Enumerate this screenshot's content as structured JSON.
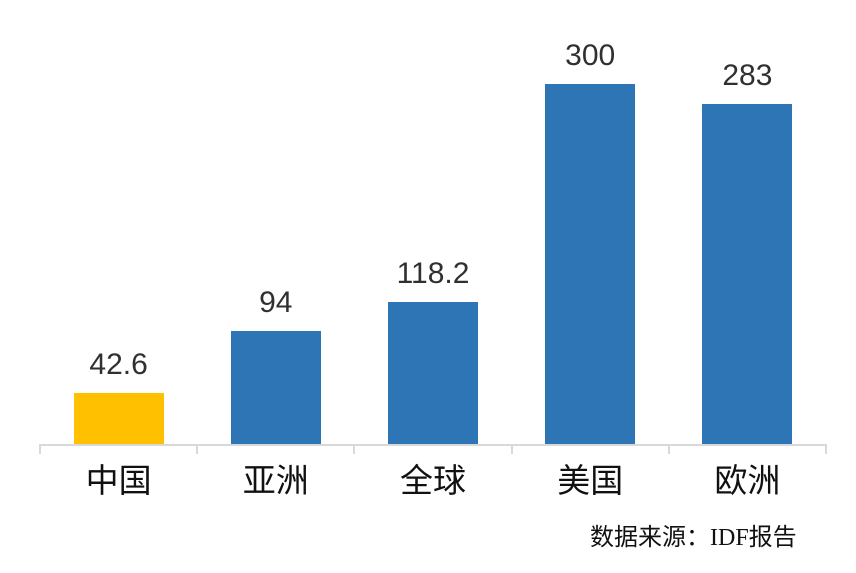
{
  "chart_data": {
    "type": "bar",
    "categories": [
      "中国",
      "亚洲",
      "全球",
      "美国",
      "欧洲"
    ],
    "values": [
      42.6,
      94,
      118.2,
      300,
      283
    ],
    "value_labels": [
      "42.6",
      "94",
      "118.2",
      "300",
      "283"
    ],
    "series": [
      {
        "name": "",
        "values": [
          42.6,
          94,
          118.2,
          300,
          283
        ]
      }
    ],
    "bar_colors": [
      "#FFC000",
      "#2E75B6",
      "#2E75B6",
      "#2E75B6",
      "#2E75B6"
    ],
    "title": "",
    "subtitle": "",
    "xlabel": "",
    "ylabel": "",
    "ylim": [
      0,
      300
    ],
    "grid": false,
    "legend": "none",
    "y_axis_visible": false,
    "x_axis_line_color": "#D9D9D9",
    "value_label_color": "#303030",
    "category_label_color": "#111111",
    "annotations": [
      "数据来源：IDF报告"
    ]
  },
  "source_note": "数据来源：IDF报告"
}
